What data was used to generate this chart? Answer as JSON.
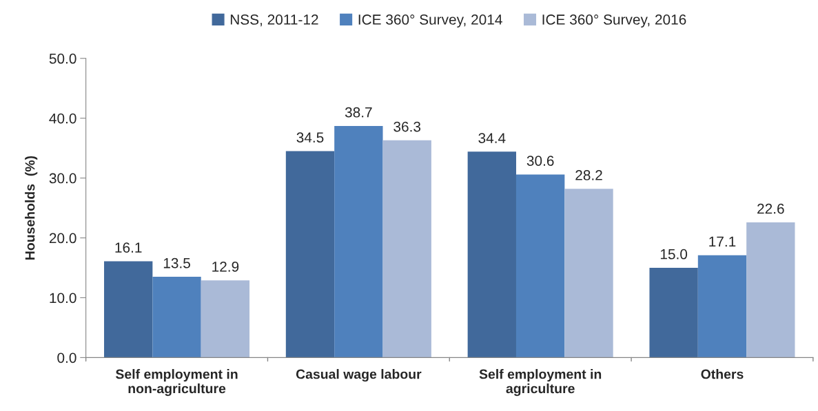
{
  "chart_data": {
    "type": "bar",
    "ylabel": "Households  (%)",
    "categories": [
      "Self employment in\nnon-agriculture",
      "Casual wage labour",
      "Self employment in\nagriculture",
      "Others"
    ],
    "series": [
      {
        "name": "NSS, 2011-12",
        "color": "#41699b",
        "values": [
          16.1,
          34.5,
          34.4,
          15.0
        ],
        "value_labels": [
          "16.1",
          "34.5",
          "34.4",
          "15.0"
        ]
      },
      {
        "name": "ICE 360° Survey, 2014",
        "color": "#4f81bd",
        "values": [
          13.5,
          38.7,
          30.6,
          17.1
        ],
        "value_labels": [
          "13.5",
          "38.7",
          "30.6",
          "17.1"
        ]
      },
      {
        "name": "ICE 360° Survey, 2016",
        "color": "#aabad7",
        "values": [
          12.9,
          36.3,
          28.2,
          22.6
        ],
        "value_labels": [
          "12.9",
          "36.3",
          "28.2",
          "22.6"
        ]
      }
    ],
    "ylim": [
      0,
      50
    ],
    "yticks": [
      {
        "value": 0,
        "label": "0.0"
      },
      {
        "value": 10,
        "label": "10.0"
      },
      {
        "value": 20,
        "label": "20.0"
      },
      {
        "value": 30,
        "label": "30.0"
      },
      {
        "value": 40,
        "label": "40.0"
      },
      {
        "value": 50,
        "label": "50.0"
      }
    ],
    "grid": false,
    "legend": "top"
  }
}
